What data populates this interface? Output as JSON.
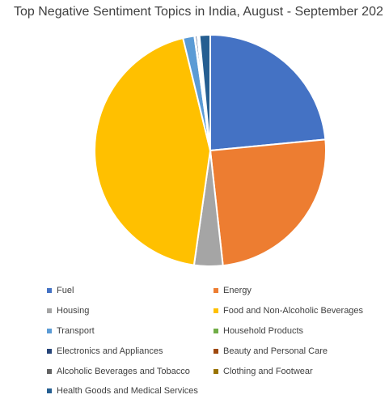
{
  "chart_data": {
    "type": "pie",
    "title": "Top Negative Sentiment Topics in India, August - September 202",
    "legend_position": "bottom",
    "slices": [
      {
        "label": "Fuel",
        "value": 23.5,
        "color": "#4472C4"
      },
      {
        "label": "Energy",
        "value": 24.8,
        "color": "#ED7D31"
      },
      {
        "label": "Housing",
        "value": 4.0,
        "color": "#A5A5A5"
      },
      {
        "label": "Food and Non-Alcoholic Beverages",
        "value": 44.0,
        "color": "#FFC000"
      },
      {
        "label": "Transport",
        "value": 1.6,
        "color": "#5B9BD5"
      },
      {
        "label": "Household Products",
        "value": 0.1,
        "color": "#70AD47"
      },
      {
        "label": "Electronics and Appliances",
        "value": 0.3,
        "color": "#264478"
      },
      {
        "label": "Beauty and Personal Care",
        "value": 0.1,
        "color": "#9E480E"
      },
      {
        "label": "Alcoholic Beverages and Tobacco",
        "value": 0.1,
        "color": "#636363"
      },
      {
        "label": "Clothing and Footwear",
        "value": 0.1,
        "color": "#997300"
      },
      {
        "label": "Health Goods and Medical Services",
        "value": 1.5,
        "color": "#255E91"
      }
    ]
  }
}
